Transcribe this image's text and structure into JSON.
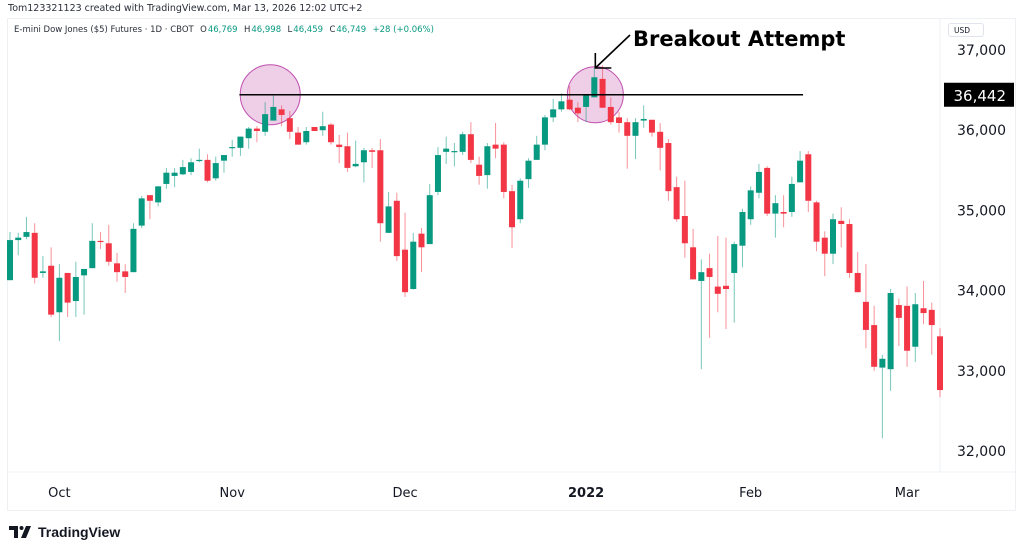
{
  "header": {
    "credit": "Tom123321123 created with TradingView.com, Mar 13, 2026 12:02 UTC+2",
    "symbol": "E-mini Dow Jones ($5) Futures · 1D · CBOT",
    "o_label": "O",
    "o_value": "46,769",
    "h_label": "H",
    "h_value": "46,998",
    "l_label": "L",
    "l_value": "46,459",
    "c_label": "C",
    "c_value": "46,749",
    "change": "+28 (+0.06%)",
    "currency": "USD"
  },
  "brand": {
    "name": "TradingView"
  },
  "colors": {
    "up": "#089981",
    "down": "#f23645",
    "circle_fill": "#e1a5d4",
    "circle_stroke": "#c04fb0"
  },
  "chart_data": {
    "type": "candlestick",
    "title": "E-mini Dow Jones ($5) Futures · 1D · CBOT",
    "ylim": [
      31800,
      37300
    ],
    "y_ticks": [
      {
        "value": 37000,
        "label": "37,000"
      },
      {
        "value": 36000,
        "label": "36,000"
      },
      {
        "value": 35000,
        "label": "35,000"
      },
      {
        "value": 34000,
        "label": "34,000"
      },
      {
        "value": 33000,
        "label": "33,000"
      },
      {
        "value": 32000,
        "label": "32,000"
      }
    ],
    "x_labels": [
      {
        "bar": 6,
        "label": "Oct",
        "bold": false
      },
      {
        "bar": 27,
        "label": "Nov",
        "bold": false
      },
      {
        "bar": 48,
        "label": "Dec",
        "bold": false
      },
      {
        "bar": 70,
        "label": "2022",
        "bold": true
      },
      {
        "bar": 90,
        "label": "Feb",
        "bold": false
      },
      {
        "bar": 109,
        "label": "Mar",
        "bold": false
      }
    ],
    "ohlc": [
      [
        34130,
        34730,
        34130,
        34630
      ],
      [
        34630,
        34720,
        34440,
        34660
      ],
      [
        34670,
        34920,
        34640,
        34730
      ],
      [
        34720,
        34840,
        34090,
        34160
      ],
      [
        34220,
        34430,
        34160,
        34240
      ],
      [
        34310,
        34540,
        33670,
        33700
      ],
      [
        33730,
        34330,
        33370,
        34160
      ],
      [
        34220,
        34220,
        33670,
        33850
      ],
      [
        33870,
        34360,
        33670,
        34170
      ],
      [
        34190,
        34270,
        33700,
        34270
      ],
      [
        34280,
        34840,
        34280,
        34620
      ],
      [
        34620,
        34730,
        34520,
        34610
      ],
      [
        34590,
        34820,
        34310,
        34360
      ],
      [
        34340,
        34470,
        34110,
        34230
      ],
      [
        34240,
        34330,
        33970,
        34170
      ],
      [
        34230,
        34840,
        34230,
        34770
      ],
      [
        34810,
        35180,
        34780,
        35150
      ],
      [
        35190,
        35190,
        34890,
        35120
      ],
      [
        35100,
        35300,
        35050,
        35300
      ],
      [
        35330,
        35530,
        35270,
        35470
      ],
      [
        35430,
        35530,
        35290,
        35470
      ],
      [
        35450,
        35630,
        35440,
        35540
      ],
      [
        35480,
        35650,
        35440,
        35600
      ],
      [
        35620,
        35770,
        35600,
        35630
      ],
      [
        35630,
        35700,
        35350,
        35370
      ],
      [
        35400,
        35670,
        35370,
        35590
      ],
      [
        35620,
        35690,
        35470,
        35690
      ],
      [
        35780,
        35880,
        35670,
        35790
      ],
      [
        35780,
        35920,
        35680,
        35920
      ],
      [
        35900,
        36040,
        35770,
        36020
      ],
      [
        36020,
        36050,
        35850,
        35990
      ],
      [
        35980,
        36350,
        35930,
        36200
      ],
      [
        36120,
        36430,
        36120,
        36290
      ],
      [
        36260,
        36310,
        36050,
        36190
      ],
      [
        36150,
        36240,
        35890,
        35980
      ],
      [
        35970,
        36040,
        35820,
        35820
      ],
      [
        35850,
        36040,
        35820,
        35990
      ],
      [
        36040,
        36040,
        35990,
        35990
      ],
      [
        36000,
        36230,
        35930,
        36050
      ],
      [
        36070,
        36090,
        35820,
        35850
      ],
      [
        35820,
        35940,
        35590,
        35790
      ],
      [
        35800,
        35970,
        35480,
        35530
      ],
      [
        35550,
        35870,
        35540,
        35580
      ],
      [
        35600,
        35780,
        35350,
        35750
      ],
      [
        35750,
        35780,
        35530,
        35730
      ],
      [
        35750,
        35890,
        34610,
        34840
      ],
      [
        34720,
        35230,
        34720,
        35050
      ],
      [
        35120,
        35220,
        34370,
        34430
      ],
      [
        34510,
        34970,
        33920,
        33980
      ],
      [
        34020,
        34720,
        34010,
        34610
      ],
      [
        34710,
        34780,
        34230,
        34540
      ],
      [
        34580,
        35330,
        34580,
        35190
      ],
      [
        35230,
        35790,
        35190,
        35690
      ],
      [
        35730,
        35920,
        35580,
        35770
      ],
      [
        35730,
        35840,
        35550,
        35740
      ],
      [
        35730,
        35980,
        35690,
        35950
      ],
      [
        35950,
        36100,
        35590,
        35630
      ],
      [
        35570,
        35670,
        35320,
        35430
      ],
      [
        35440,
        35840,
        35270,
        35800
      ],
      [
        35820,
        36090,
        35650,
        35770
      ],
      [
        35820,
        35850,
        35150,
        35230
      ],
      [
        35240,
        35320,
        34530,
        34790
      ],
      [
        34890,
        35400,
        34840,
        35370
      ],
      [
        35390,
        35650,
        35280,
        35620
      ],
      [
        35630,
        35930,
        35630,
        35820
      ],
      [
        35820,
        36190,
        35750,
        36160
      ],
      [
        36160,
        36390,
        36100,
        36260
      ],
      [
        36260,
        36460,
        36230,
        36360
      ],
      [
        36380,
        36550,
        36250,
        36260
      ],
      [
        36280,
        36350,
        36100,
        36210
      ],
      [
        36290,
        36450,
        36100,
        36440
      ],
      [
        36410,
        36780,
        36410,
        36660
      ],
      [
        36640,
        36810,
        36280,
        36280
      ],
      [
        36290,
        36410,
        36070,
        36100
      ],
      [
        36160,
        36230,
        35970,
        36090
      ],
      [
        36100,
        36150,
        35520,
        35930
      ],
      [
        35930,
        36150,
        35640,
        36100
      ],
      [
        36120,
        36310,
        36030,
        36140
      ],
      [
        36130,
        36130,
        35920,
        35970
      ],
      [
        35980,
        36090,
        35500,
        35780
      ],
      [
        35840,
        35890,
        35120,
        35240
      ],
      [
        35290,
        35420,
        34860,
        34890
      ],
      [
        34930,
        35370,
        34410,
        34590
      ],
      [
        34540,
        34770,
        34140,
        34140
      ],
      [
        34120,
        34390,
        33020,
        34230
      ],
      [
        34280,
        34460,
        33410,
        34170
      ],
      [
        34050,
        34680,
        33730,
        33960
      ],
      [
        34060,
        34660,
        33520,
        34020
      ],
      [
        34220,
        34610,
        33600,
        34580
      ],
      [
        34560,
        35020,
        34290,
        34980
      ],
      [
        34890,
        35300,
        34820,
        35250
      ],
      [
        35220,
        35580,
        35150,
        35480
      ],
      [
        35530,
        35550,
        34930,
        34960
      ],
      [
        34960,
        35190,
        34660,
        35090
      ],
      [
        34980,
        35190,
        34790,
        34960
      ],
      [
        34980,
        35420,
        34920,
        35330
      ],
      [
        35350,
        35740,
        35350,
        35620
      ],
      [
        35700,
        35740,
        34980,
        35120
      ],
      [
        35100,
        35120,
        34490,
        34610
      ],
      [
        34660,
        34740,
        34180,
        34460
      ],
      [
        34460,
        34960,
        34330,
        34890
      ],
      [
        34870,
        35040,
        34540,
        34830
      ],
      [
        34830,
        34890,
        34160,
        34220
      ],
      [
        34220,
        34480,
        33980,
        33980
      ],
      [
        33860,
        34330,
        33280,
        33510
      ],
      [
        33570,
        33810,
        33000,
        33050
      ],
      [
        33040,
        33200,
        32160,
        33150
      ],
      [
        33020,
        34020,
        32750,
        33970
      ],
      [
        33820,
        33900,
        33310,
        33660
      ],
      [
        33810,
        34050,
        33050,
        33250
      ],
      [
        33300,
        33970,
        33110,
        33830
      ],
      [
        33780,
        34120,
        33580,
        33720
      ],
      [
        33760,
        33850,
        33200,
        33570
      ],
      [
        33430,
        33530,
        32670,
        32760
      ]
    ],
    "annotations": {
      "level": {
        "value": 36442,
        "label": "36,442",
        "from_bar": 28,
        "to_bar": 96
      },
      "highlight_bars": [
        31.5,
        71
      ],
      "text": "Breakout Attempt",
      "arrow_to_bar": 71
    }
  }
}
